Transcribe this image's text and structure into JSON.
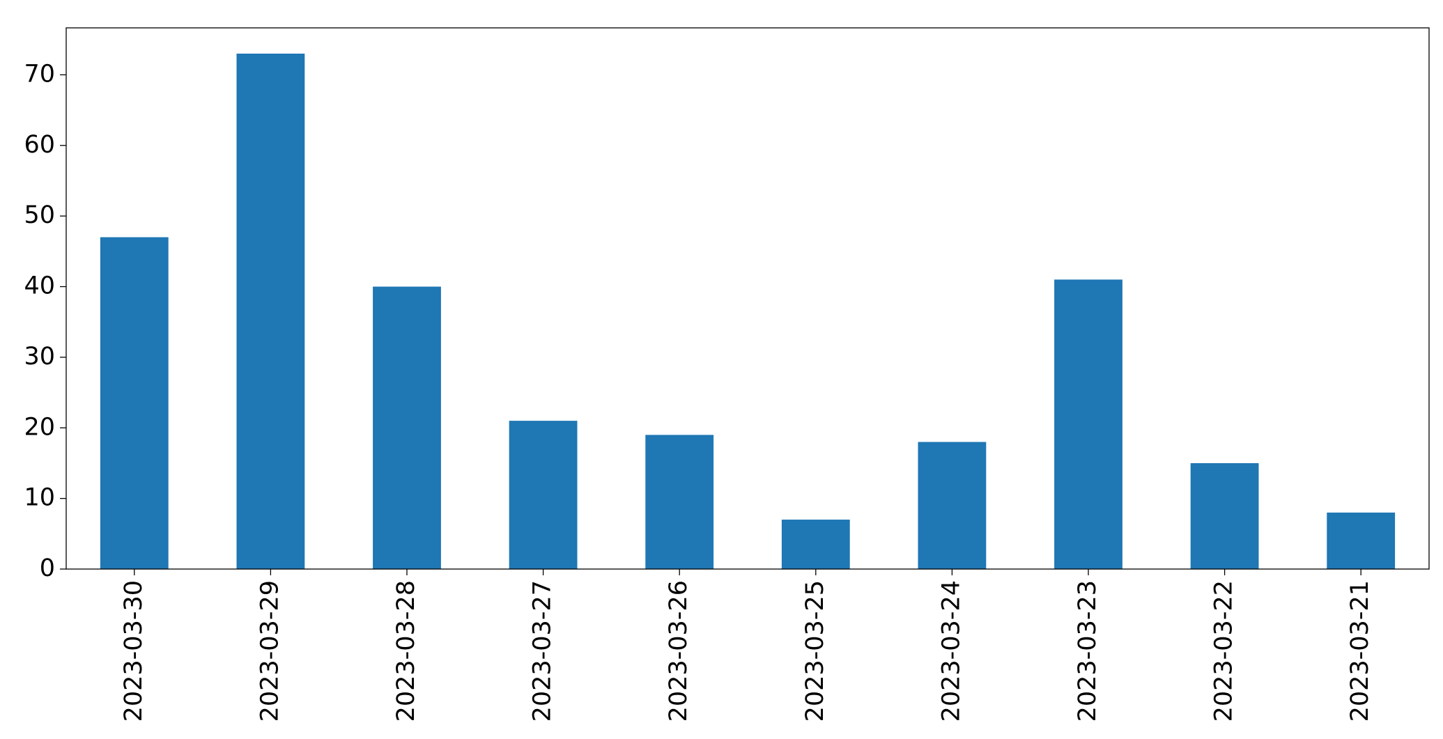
{
  "chart_data": {
    "type": "bar",
    "categories": [
      "2023-03-30",
      "2023-03-29",
      "2023-03-28",
      "2023-03-27",
      "2023-03-26",
      "2023-03-25",
      "2023-03-24",
      "2023-03-23",
      "2023-03-22",
      "2023-03-21"
    ],
    "values": [
      47,
      73,
      40,
      21,
      19,
      7,
      18,
      41,
      15,
      8
    ],
    "color": "#1f77b4",
    "ylim": [
      0,
      76.65
    ],
    "yticks": [
      0,
      10,
      20,
      30,
      40,
      50,
      60,
      70
    ],
    "grid": false
  }
}
